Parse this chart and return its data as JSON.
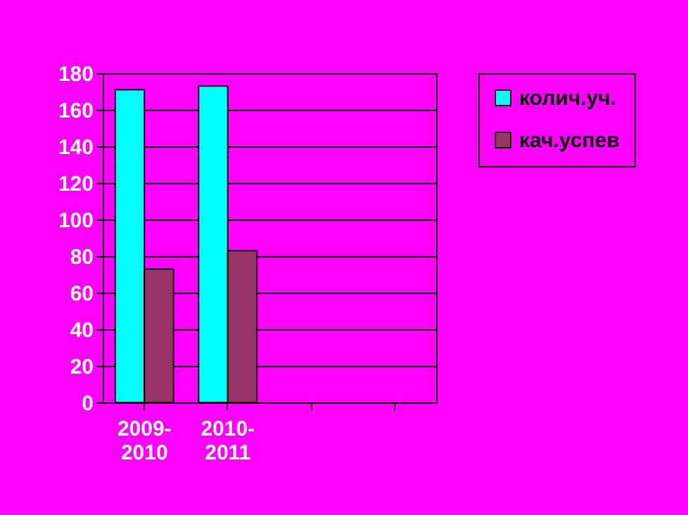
{
  "chart_data": {
    "type": "bar",
    "categories": [
      "2009-2010",
      "2010-2011",
      null,
      null
    ],
    "series": [
      {
        "name": "колич.уч.",
        "color": "#00ffff",
        "values": [
          171,
          173,
          null,
          null
        ]
      },
      {
        "name": "кач.успев",
        "color": "#993366",
        "values": [
          73,
          83,
          null,
          null
        ]
      }
    ],
    "ylim": [
      0,
      180
    ],
    "yticks": [
      0,
      20,
      40,
      60,
      80,
      100,
      120,
      140,
      160,
      180
    ],
    "grid": "y",
    "legend": "right"
  }
}
